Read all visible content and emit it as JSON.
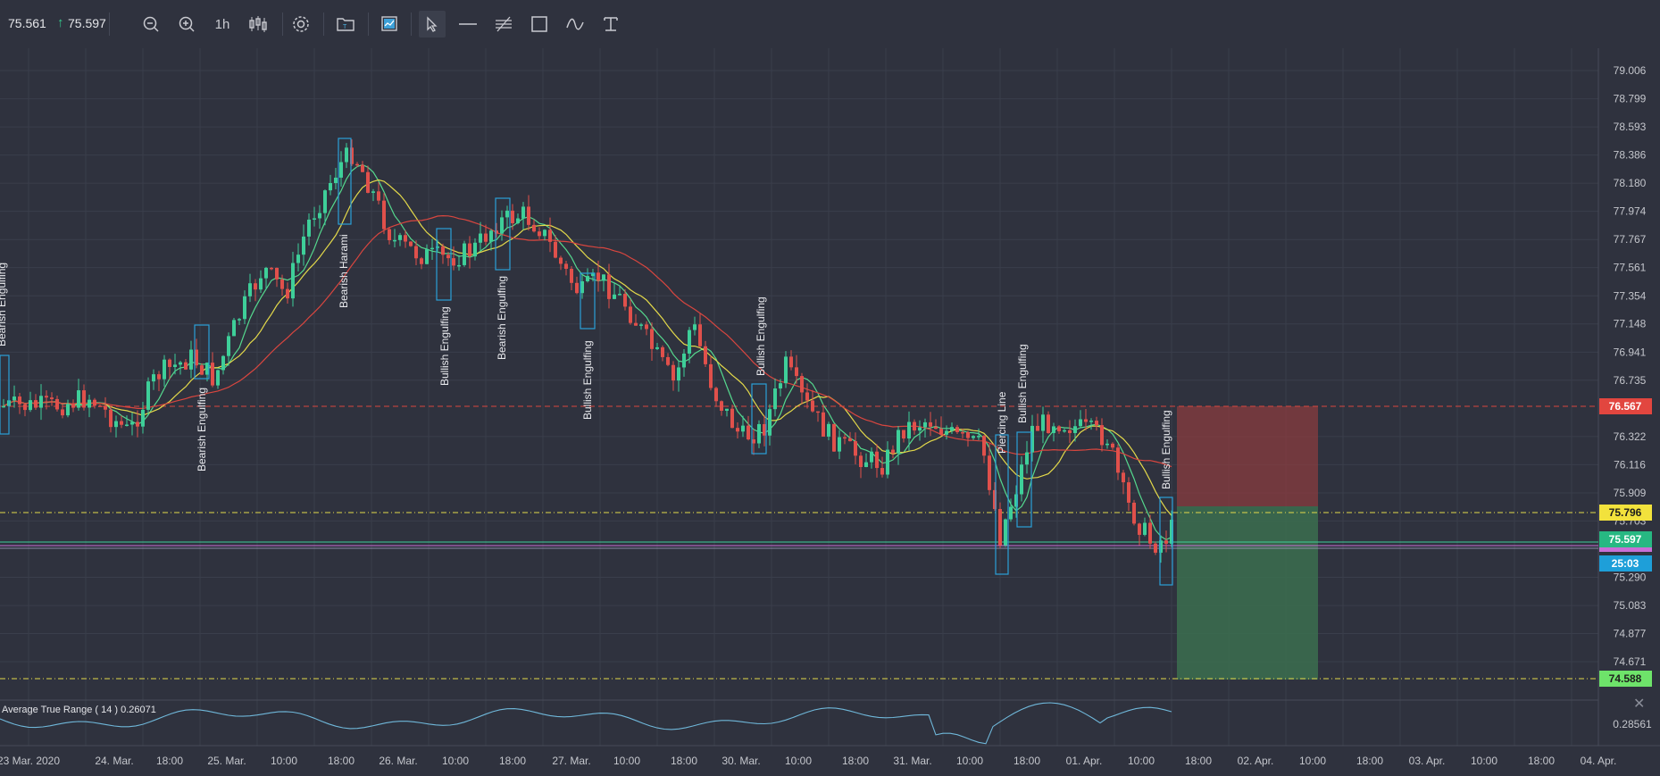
{
  "toolbar": {
    "bid": "75.561",
    "ask": "75.597",
    "timeframe": "1h",
    "buttons": [
      "zoom-out-icon",
      "zoom-in-icon",
      "candles-icon",
      "gear-icon",
      "folder-icon",
      "screenshot-icon",
      "cursor-icon",
      "horizontal-line-icon",
      "channel-icon",
      "rectangle-icon",
      "curve-icon",
      "text-icon"
    ]
  },
  "price_axis": {
    "ticks": [
      "79.006",
      "78.799",
      "78.593",
      "78.386",
      "78.180",
      "77.974",
      "77.767",
      "77.561",
      "77.354",
      "77.148",
      "76.941",
      "76.735",
      "76.322",
      "76.116",
      "75.909",
      "75.703",
      "75.290",
      "75.083",
      "74.877",
      "74.671"
    ],
    "tags": {
      "stop": {
        "text": "76.567",
        "color": "#e2463f"
      },
      "entry": {
        "text": "75.796",
        "color": "#f2e23c"
      },
      "current": {
        "text": "75.597",
        "color": "#27b882"
      },
      "timer": {
        "text": "25:03",
        "color": "#1e9fd9"
      },
      "target": {
        "text": "74.588",
        "color": "#6ee36a"
      }
    }
  },
  "time_axis": [
    "23 Mar. 2020",
    "24. Mar.",
    "18:00",
    "25. Mar.",
    "10:00",
    "18:00",
    "26. Mar.",
    "10:00",
    "18:00",
    "27. Mar.",
    "10:00",
    "18:00",
    "30. Mar.",
    "10:00",
    "18:00",
    "31. Mar.",
    "10:00",
    "18:00",
    "01. Apr.",
    "10:00",
    "18:00",
    "02. Apr.",
    "10:00",
    "18:00",
    "03. Apr.",
    "10:00",
    "18:00",
    "04. Apr."
  ],
  "indicator": {
    "label": "Average True Range ( 14 ) 0.26071",
    "axis_value": "0.28561"
  },
  "patterns": [
    "Bearish Engulfing",
    "Bearish Engulfing",
    "Bearish Harami",
    "Bullish Engulfing",
    "Bearish Engulfing",
    "Bullish Engulfing",
    "Bullish Engulfing",
    "Piercing Line",
    "Bullish Engulfing",
    "Bullish Engulfing"
  ],
  "colors": {
    "background": "#2f323e",
    "bull": "#3ecf99",
    "bear": "#e0504b",
    "ma_green": "#55d98e",
    "ma_yellow": "#e3d94a",
    "ma_red": "#d9463f",
    "atr_line": "#6fb7d9"
  }
}
